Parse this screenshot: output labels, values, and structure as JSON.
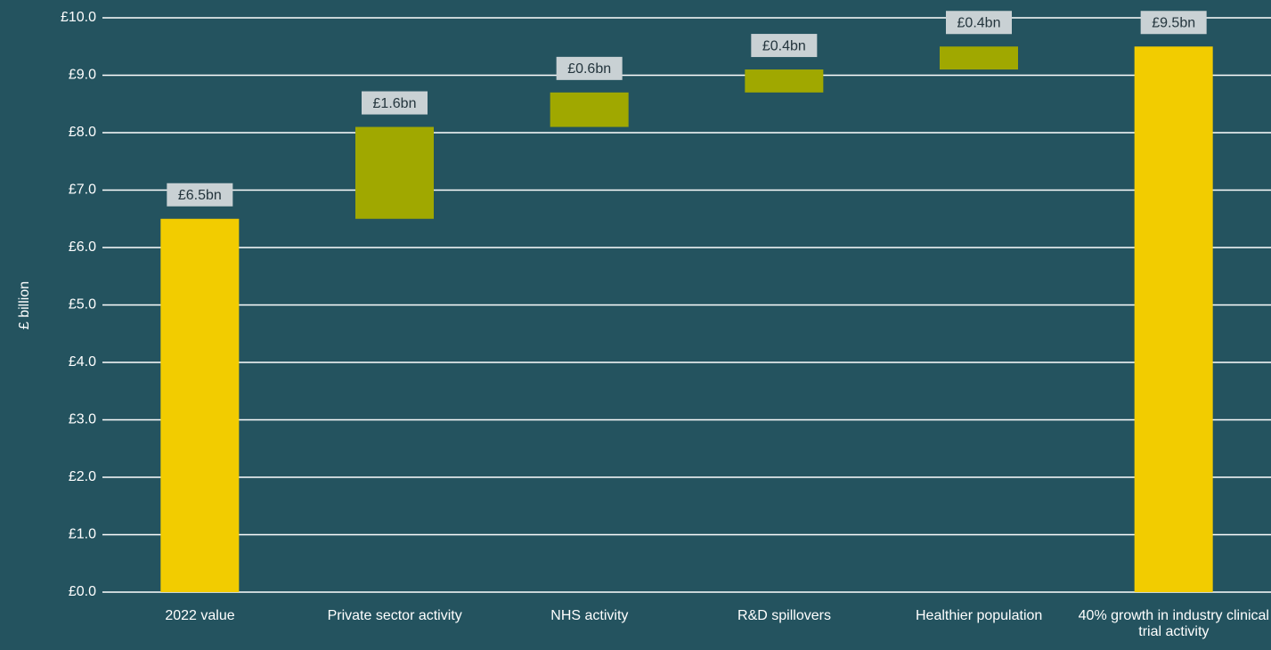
{
  "chart_data": {
    "type": "waterfall",
    "y_label": "£ billion",
    "categories": [
      "2022 value",
      "Private sector activity",
      "NHS activity",
      "R&D spillovers",
      "Healthier population",
      "40% growth in industry clinical trial activity"
    ],
    "values": [
      6.5,
      1.6,
      0.6,
      0.4,
      0.4,
      9.5
    ],
    "value_labels": [
      "£6.5bn",
      "£1.6bn",
      "£0.6bn",
      "£0.4bn",
      "£0.4bn",
      "£9.5bn"
    ],
    "is_total": [
      true,
      false,
      false,
      false,
      false,
      true
    ],
    "total_color": "#f2cc00",
    "increase_color": "#a0a800",
    "ylim": [
      0,
      10
    ],
    "yticks": [
      {
        "value": 0,
        "label": "£0.0"
      },
      {
        "value": 1,
        "label": "£1.0"
      },
      {
        "value": 2,
        "label": "£2.0"
      },
      {
        "value": 3,
        "label": "£3.0"
      },
      {
        "value": 4,
        "label": "£4.0"
      },
      {
        "value": 5,
        "label": "£5.0"
      },
      {
        "value": 6,
        "label": "£6.0"
      },
      {
        "value": 7,
        "label": "£7.0"
      },
      {
        "value": 8,
        "label": "£8.0"
      },
      {
        "value": 9,
        "label": "£9.0"
      },
      {
        "value": 10,
        "label": "£10.0"
      }
    ],
    "grid": true
  }
}
